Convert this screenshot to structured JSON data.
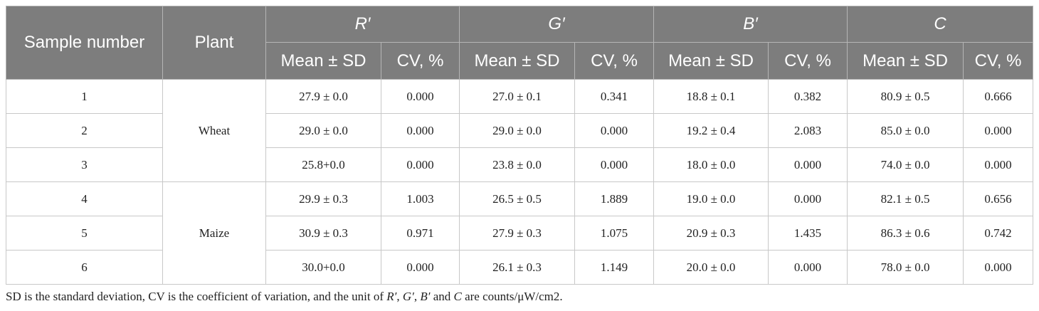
{
  "table": {
    "headers": {
      "sample_number": "Sample number",
      "plant": "Plant",
      "groups": [
        "R′",
        "G′",
        "B′",
        "C"
      ],
      "sub": {
        "mean": "Mean ± SD",
        "cv": "CV, %"
      }
    },
    "plants": [
      "Wheat",
      "Maize"
    ],
    "rows": [
      {
        "sample": "1",
        "r_mean": "27.9 ± 0.0",
        "r_cv": "0.000",
        "g_mean": "27.0 ± 0.1",
        "g_cv": "0.341",
        "b_mean": "18.8 ± 0.1",
        "b_cv": "0.382",
        "c_mean": "80.9 ± 0.5",
        "c_cv": "0.666"
      },
      {
        "sample": "2",
        "r_mean": "29.0 ± 0.0",
        "r_cv": "0.000",
        "g_mean": "29.0 ± 0.0",
        "g_cv": "0.000",
        "b_mean": "19.2 ± 0.4",
        "b_cv": "2.083",
        "c_mean": "85.0 ± 0.0",
        "c_cv": "0.000"
      },
      {
        "sample": "3",
        "r_mean": "25.8+0.0",
        "r_cv": "0.000",
        "g_mean": "23.8 ± 0.0",
        "g_cv": "0.000",
        "b_mean": "18.0 ± 0.0",
        "b_cv": "0.000",
        "c_mean": "74.0 ± 0.0",
        "c_cv": "0.000"
      },
      {
        "sample": "4",
        "r_mean": "29.9 ± 0.3",
        "r_cv": "1.003",
        "g_mean": "26.5 ± 0.5",
        "g_cv": "1.889",
        "b_mean": "19.0 ± 0.0",
        "b_cv": "0.000",
        "c_mean": "82.1 ± 0.5",
        "c_cv": "0.656"
      },
      {
        "sample": "5",
        "r_mean": "30.9 ± 0.3",
        "r_cv": "0.971",
        "g_mean": "27.9 ± 0.3",
        "g_cv": "1.075",
        "b_mean": "20.9 ± 0.3",
        "b_cv": "1.435",
        "c_mean": "86.3 ± 0.6",
        "c_cv": "0.742"
      },
      {
        "sample": "6",
        "r_mean": "30.0+0.0",
        "r_cv": "0.000",
        "g_mean": "26.1 ± 0.3",
        "g_cv": "1.149",
        "b_mean": "20.0 ± 0.0",
        "b_cv": "0.000",
        "c_mean": "78.0 ± 0.0",
        "c_cv": "0.000"
      }
    ]
  },
  "footnote": {
    "part1": "SD is the standard deviation, CV is the coefficient of variation, and the unit of ",
    "r": "R′",
    "sep1": ", ",
    "g": "G′",
    "sep2": ", ",
    "b": "B′",
    "sep3": " and ",
    "c": "C",
    "part2": " are counts/μW/cm2."
  },
  "colors": {
    "header_bg": "#7d7d7d",
    "header_text": "#ffffff",
    "grid": "#c8c8c8"
  }
}
